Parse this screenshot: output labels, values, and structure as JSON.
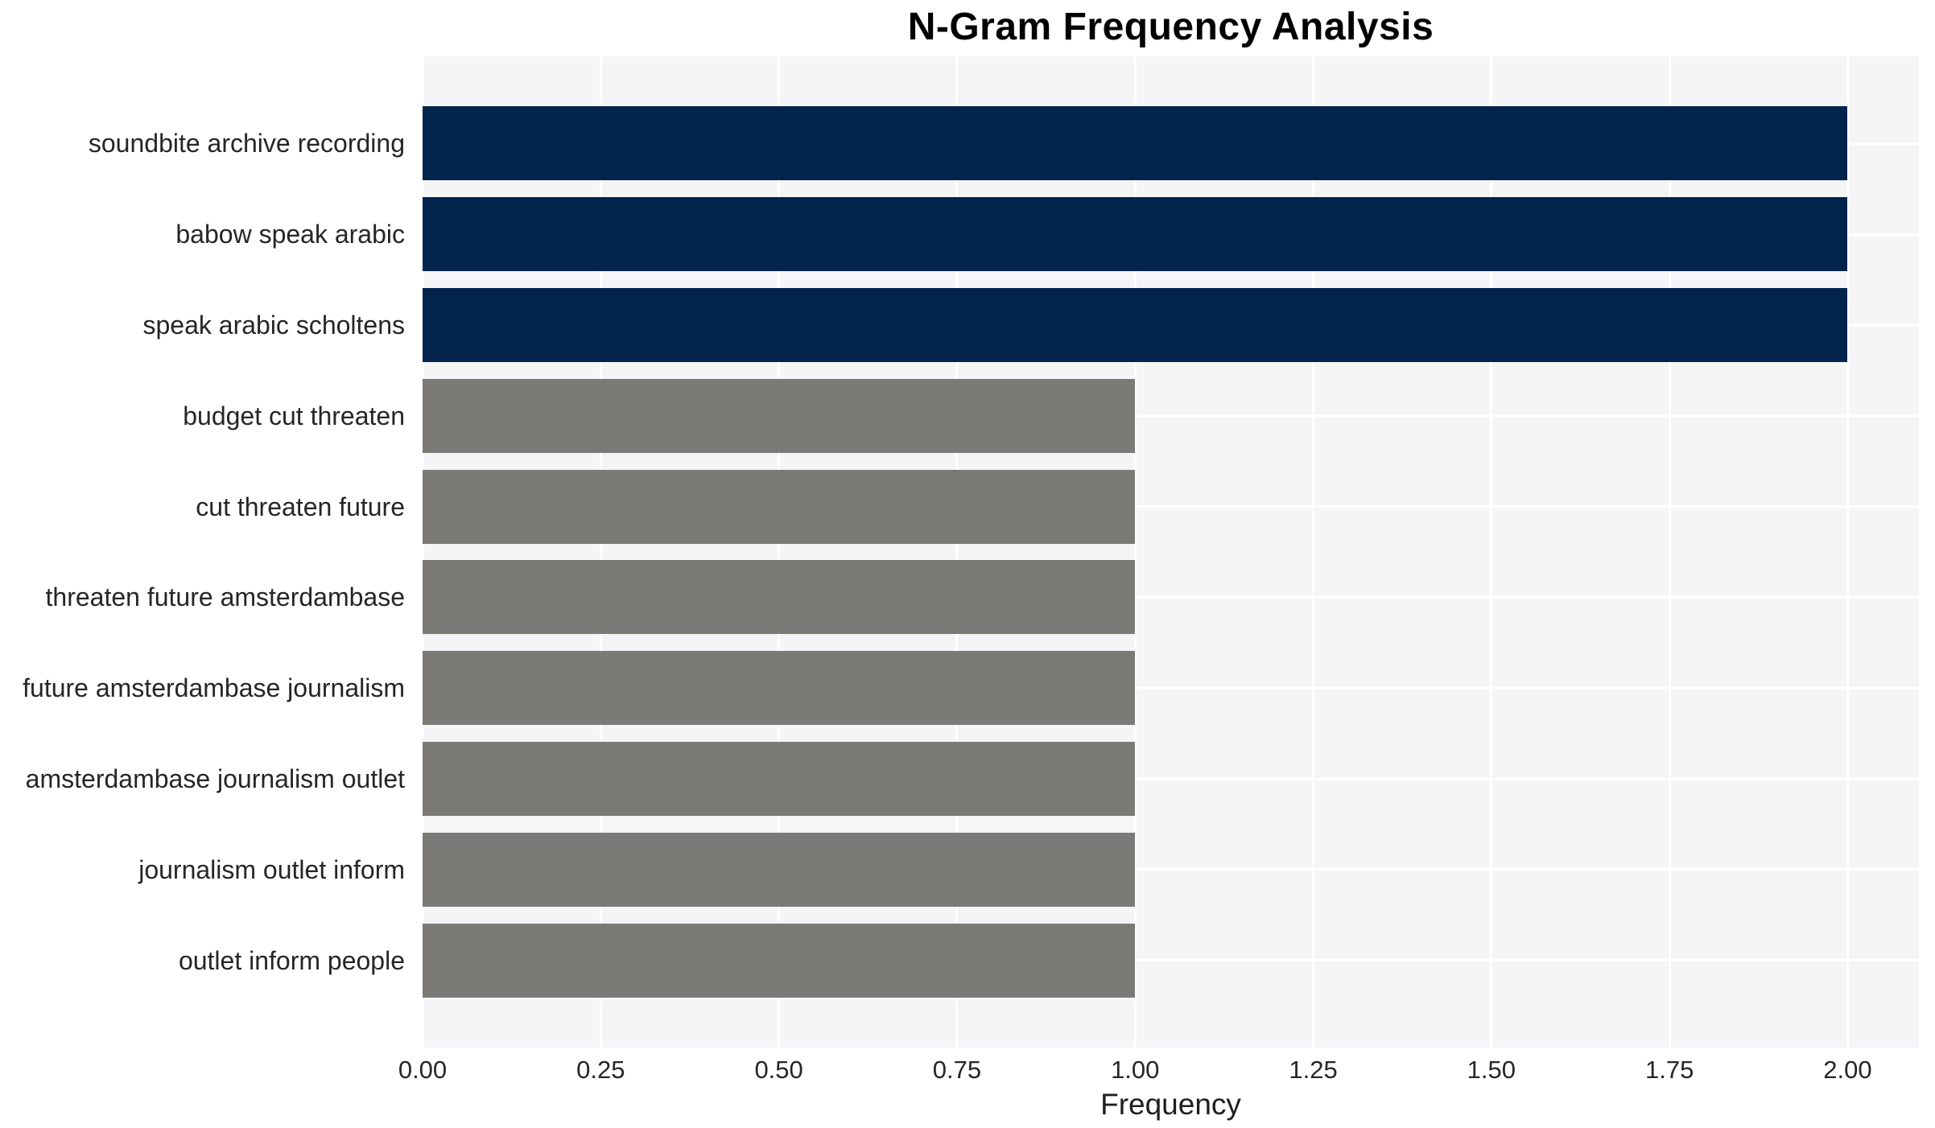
{
  "chart_data": {
    "type": "bar",
    "orientation": "horizontal",
    "title": "N-Gram Frequency Analysis",
    "xlabel": "Frequency",
    "ylabel": "",
    "categories": [
      "soundbite archive recording",
      "babow speak arabic",
      "speak arabic scholtens",
      "budget cut threaten",
      "cut threaten future",
      "threaten future amsterdambase",
      "future amsterdambase journalism",
      "amsterdambase journalism outlet",
      "journalism outlet inform",
      "outlet inform people"
    ],
    "values": [
      2,
      2,
      2,
      1,
      1,
      1,
      1,
      1,
      1,
      1
    ],
    "bar_colors": [
      "#02244d",
      "#02244d",
      "#02244d",
      "#7b7a77",
      "#7b7a77",
      "#7b7a77",
      "#7b7a77",
      "#7b7a77",
      "#7b7a77",
      "#7b7a77"
    ],
    "xlim": [
      0,
      2.1
    ],
    "xticks": [
      0.0,
      0.25,
      0.5,
      0.75,
      1.0,
      1.25,
      1.5,
      1.75,
      2.0
    ],
    "xtick_labels": [
      "0.00",
      "0.25",
      "0.50",
      "0.75",
      "1.00",
      "1.25",
      "1.50",
      "1.75",
      "2.00"
    ],
    "grid": true,
    "legend_position": "none",
    "colors": {
      "frequency_2_bar": "#02244d",
      "frequency_1_bar": "#7b7a77",
      "plot_background": "#f5f5f7",
      "gridline": "#ffffff",
      "title_text": "#000000",
      "label_text": "#262626"
    }
  }
}
